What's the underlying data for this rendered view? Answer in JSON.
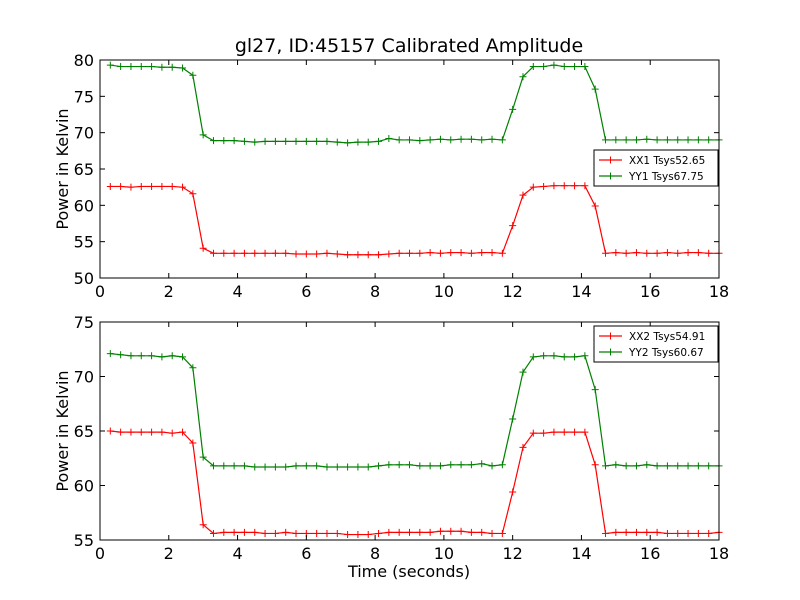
{
  "title": "gl27, ID:45157 Calibrated Amplitude",
  "xlabel": "Time (seconds)",
  "chart_data": [
    {
      "type": "line",
      "ylabel": "Power in Kelvin",
      "xlim": [
        0,
        18
      ],
      "ylim": [
        50,
        80
      ],
      "xticks": [
        0,
        2,
        4,
        6,
        8,
        10,
        12,
        14,
        16,
        18
      ],
      "yticks": [
        50,
        55,
        60,
        65,
        70,
        75,
        80
      ],
      "legend": "center-right",
      "series": [
        {
          "name": "XX1 Tsys52.65",
          "color": "#ff0000",
          "x": [
            0.3,
            0.6,
            0.9,
            1.2,
            1.5,
            1.8,
            2.1,
            2.4,
            2.7,
            3.0,
            3.3,
            3.6,
            3.9,
            4.2,
            4.5,
            4.8,
            5.1,
            5.4,
            5.7,
            6.0,
            6.3,
            6.6,
            6.9,
            7.2,
            7.5,
            7.8,
            8.1,
            8.4,
            8.7,
            9.0,
            9.3,
            9.6,
            9.9,
            10.2,
            10.5,
            10.8,
            11.1,
            11.4,
            11.7,
            12.0,
            12.3,
            12.6,
            12.9,
            13.2,
            13.5,
            13.8,
            14.1,
            14.4,
            14.7,
            15.0,
            15.3,
            15.6,
            15.9,
            16.2,
            16.5,
            16.8,
            17.1,
            17.4,
            17.7,
            18.0
          ],
          "y": [
            62.6,
            62.6,
            62.5,
            62.6,
            62.6,
            62.6,
            62.6,
            62.5,
            61.6,
            54.1,
            53.4,
            53.4,
            53.4,
            53.4,
            53.4,
            53.4,
            53.4,
            53.4,
            53.3,
            53.3,
            53.3,
            53.4,
            53.3,
            53.2,
            53.2,
            53.2,
            53.2,
            53.3,
            53.4,
            53.4,
            53.4,
            53.5,
            53.4,
            53.5,
            53.5,
            53.4,
            53.5,
            53.5,
            53.4,
            57.2,
            61.4,
            62.5,
            62.6,
            62.7,
            62.7,
            62.7,
            62.7,
            59.9,
            53.4,
            53.5,
            53.4,
            53.5,
            53.4,
            53.4,
            53.5,
            53.4,
            53.5,
            53.5,
            53.4,
            53.4
          ]
        },
        {
          "name": "YY1 Tsys67.75",
          "color": "#008000",
          "x": [
            0.3,
            0.6,
            0.9,
            1.2,
            1.5,
            1.8,
            2.1,
            2.4,
            2.7,
            3.0,
            3.3,
            3.6,
            3.9,
            4.2,
            4.5,
            4.8,
            5.1,
            5.4,
            5.7,
            6.0,
            6.3,
            6.6,
            6.9,
            7.2,
            7.5,
            7.8,
            8.1,
            8.4,
            8.7,
            9.0,
            9.3,
            9.6,
            9.9,
            10.2,
            10.5,
            10.8,
            11.1,
            11.4,
            11.7,
            12.0,
            12.3,
            12.6,
            12.9,
            13.2,
            13.5,
            13.8,
            14.1,
            14.4,
            14.7,
            15.0,
            15.3,
            15.6,
            15.9,
            16.2,
            16.5,
            16.8,
            17.1,
            17.4,
            17.7,
            18.0
          ],
          "y": [
            79.3,
            79.1,
            79.1,
            79.1,
            79.1,
            79.0,
            79.0,
            78.9,
            77.9,
            69.7,
            68.9,
            68.9,
            68.9,
            68.8,
            68.7,
            68.8,
            68.8,
            68.8,
            68.8,
            68.8,
            68.8,
            68.8,
            68.7,
            68.6,
            68.7,
            68.7,
            68.8,
            69.2,
            69.0,
            69.0,
            68.9,
            69.0,
            69.1,
            69.0,
            69.1,
            69.1,
            69.0,
            69.1,
            69.0,
            73.2,
            77.7,
            79.1,
            79.1,
            79.3,
            79.1,
            79.1,
            79.1,
            76.0,
            69.0,
            69.0,
            69.0,
            69.0,
            69.1,
            69.0,
            69.0,
            69.0,
            69.0,
            69.0,
            69.0,
            69.0
          ]
        }
      ]
    },
    {
      "type": "line",
      "ylabel": "Power in Kelvin",
      "xlim": [
        0,
        18
      ],
      "ylim": [
        55,
        75
      ],
      "xticks": [
        0,
        2,
        4,
        6,
        8,
        10,
        12,
        14,
        16,
        18
      ],
      "yticks": [
        55,
        60,
        65,
        70,
        75
      ],
      "legend": "top-right",
      "series": [
        {
          "name": "XX2 Tsys54.91",
          "color": "#ff0000",
          "x": [
            0.3,
            0.6,
            0.9,
            1.2,
            1.5,
            1.8,
            2.1,
            2.4,
            2.7,
            3.0,
            3.3,
            3.6,
            3.9,
            4.2,
            4.5,
            4.8,
            5.1,
            5.4,
            5.7,
            6.0,
            6.3,
            6.6,
            6.9,
            7.2,
            7.5,
            7.8,
            8.1,
            8.4,
            8.7,
            9.0,
            9.3,
            9.6,
            9.9,
            10.2,
            10.5,
            10.8,
            11.1,
            11.4,
            11.7,
            12.0,
            12.3,
            12.6,
            12.9,
            13.2,
            13.5,
            13.8,
            14.1,
            14.4,
            14.7,
            15.0,
            15.3,
            15.6,
            15.9,
            16.2,
            16.5,
            16.8,
            17.1,
            17.4,
            17.7,
            18.0
          ],
          "y": [
            65.0,
            64.9,
            64.9,
            64.9,
            64.9,
            64.9,
            64.8,
            64.9,
            63.9,
            56.4,
            55.6,
            55.7,
            55.7,
            55.7,
            55.7,
            55.6,
            55.6,
            55.7,
            55.6,
            55.6,
            55.6,
            55.6,
            55.6,
            55.5,
            55.5,
            55.5,
            55.6,
            55.7,
            55.7,
            55.7,
            55.7,
            55.7,
            55.8,
            55.8,
            55.8,
            55.7,
            55.7,
            55.6,
            55.6,
            59.4,
            63.5,
            64.8,
            64.8,
            64.9,
            64.9,
            64.9,
            64.9,
            61.9,
            55.6,
            55.7,
            55.7,
            55.7,
            55.7,
            55.7,
            55.6,
            55.6,
            55.6,
            55.6,
            55.6,
            55.7
          ]
        },
        {
          "name": "YY2 Tsys60.67",
          "color": "#008000",
          "x": [
            0.3,
            0.6,
            0.9,
            1.2,
            1.5,
            1.8,
            2.1,
            2.4,
            2.7,
            3.0,
            3.3,
            3.6,
            3.9,
            4.2,
            4.5,
            4.8,
            5.1,
            5.4,
            5.7,
            6.0,
            6.3,
            6.6,
            6.9,
            7.2,
            7.5,
            7.8,
            8.1,
            8.4,
            8.7,
            9.0,
            9.3,
            9.6,
            9.9,
            10.2,
            10.5,
            10.8,
            11.1,
            11.4,
            11.7,
            12.0,
            12.3,
            12.6,
            12.9,
            13.2,
            13.5,
            13.8,
            14.1,
            14.4,
            14.7,
            15.0,
            15.3,
            15.6,
            15.9,
            16.2,
            16.5,
            16.8,
            17.1,
            17.4,
            17.7,
            18.0
          ],
          "y": [
            72.1,
            72.0,
            71.9,
            71.9,
            71.9,
            71.8,
            71.9,
            71.8,
            70.8,
            62.6,
            61.8,
            61.8,
            61.8,
            61.8,
            61.7,
            61.7,
            61.7,
            61.7,
            61.8,
            61.8,
            61.8,
            61.7,
            61.7,
            61.7,
            61.7,
            61.7,
            61.8,
            61.9,
            61.9,
            61.9,
            61.8,
            61.8,
            61.8,
            61.9,
            61.9,
            61.9,
            62.0,
            61.8,
            61.9,
            66.1,
            70.4,
            71.8,
            71.9,
            71.9,
            71.8,
            71.8,
            71.9,
            68.8,
            61.8,
            61.9,
            61.8,
            61.8,
            61.9,
            61.8,
            61.8,
            61.8,
            61.8,
            61.8,
            61.8,
            61.8
          ]
        }
      ]
    }
  ]
}
